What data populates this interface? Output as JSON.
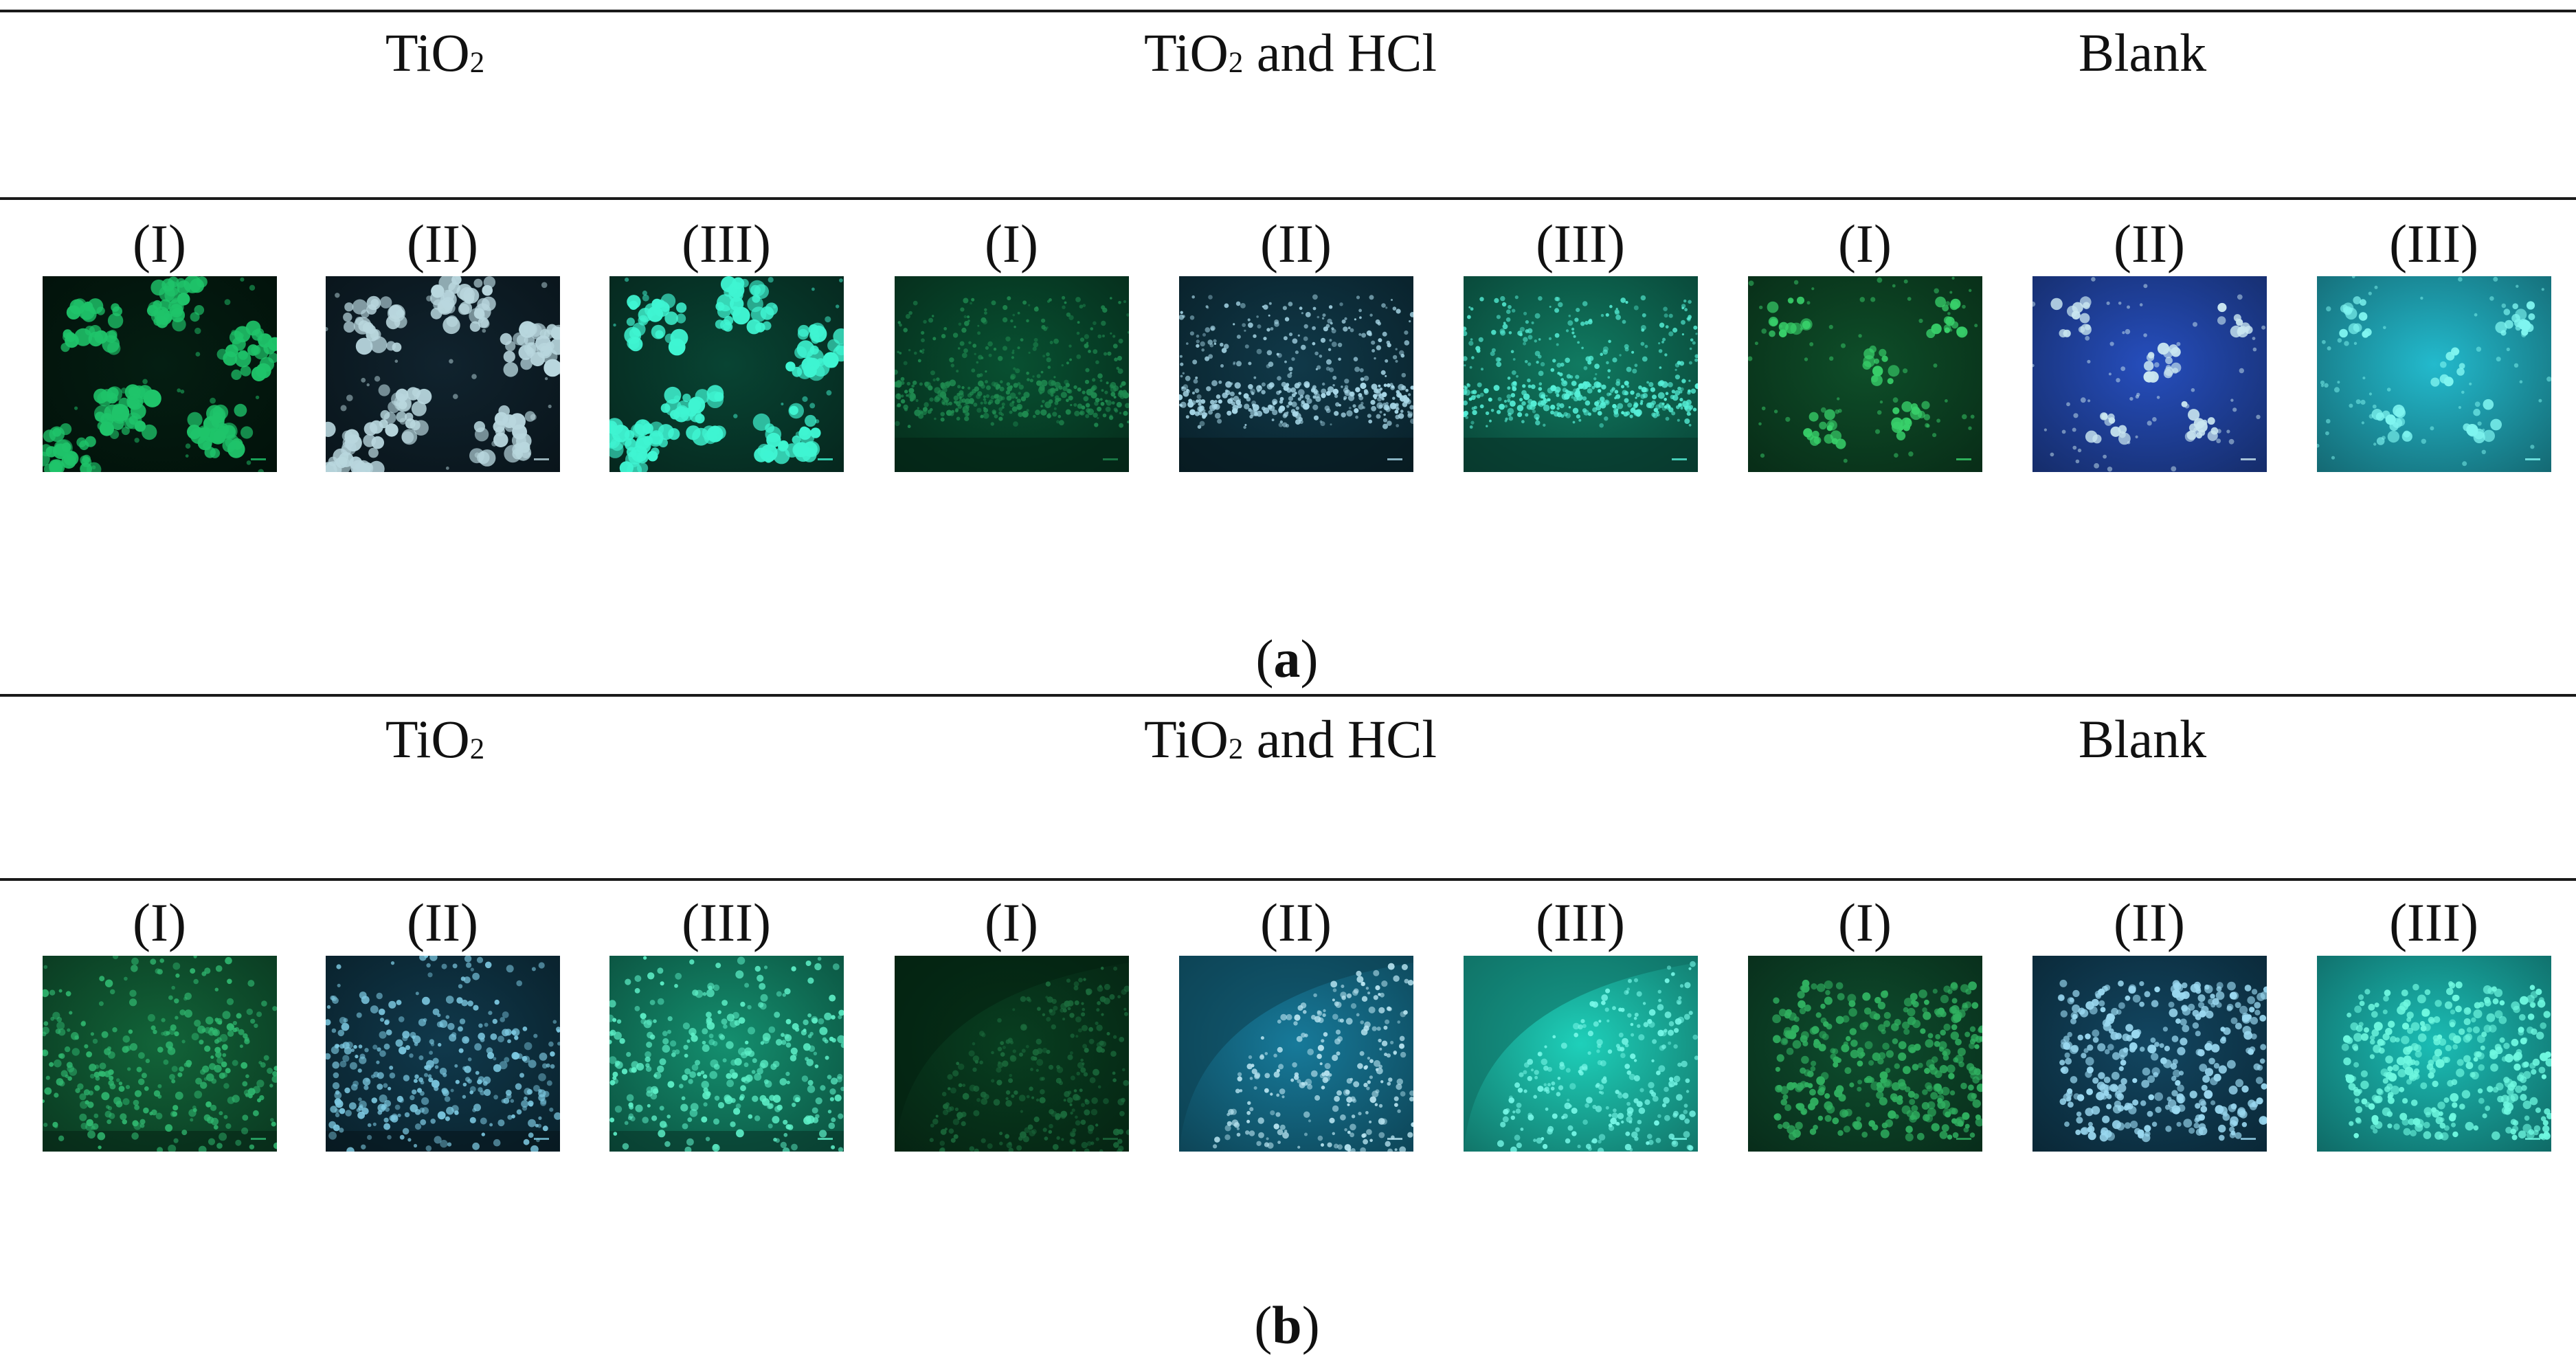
{
  "panels": [
    {
      "id": "a",
      "caption_open": "(",
      "caption_letter": "a",
      "caption_close": ")",
      "groups": [
        {
          "title_main": "TiO",
          "title_sub": "2",
          "title_rest": ""
        },
        {
          "title_main": "TiO",
          "title_sub": "2",
          "title_rest": " and HCl"
        },
        {
          "title_main": "Blank",
          "title_sub": "",
          "title_rest": ""
        }
      ],
      "labels": [
        "(I)",
        "(II)",
        "(III)",
        "(I)",
        "(II)",
        "(III)",
        "(I)",
        "(II)",
        "(III)"
      ],
      "images": [
        {
          "group": "TiO2",
          "channel": "I",
          "bg": "#03160d",
          "dot": "#1fc46a",
          "style": "clusters"
        },
        {
          "group": "TiO2",
          "channel": "II",
          "bg": "#0c1a22",
          "dot": "#b9d7de",
          "style": "clusters"
        },
        {
          "group": "TiO2",
          "channel": "III",
          "bg": "#063226",
          "dot": "#3ff5d2",
          "style": "clusters"
        },
        {
          "group": "TiO2 and HCl",
          "channel": "I",
          "bg": "#063b24",
          "dot": "#1f8a50",
          "style": "band"
        },
        {
          "group": "TiO2 and HCl",
          "channel": "II",
          "bg": "#0c2a36",
          "dot": "#a8d8e8",
          "style": "band"
        },
        {
          "group": "TiO2 and HCl",
          "channel": "III",
          "bg": "#0c5a48",
          "dot": "#56f0d8",
          "style": "band"
        },
        {
          "group": "Blank",
          "channel": "I",
          "bg": "#0a3a1e",
          "dot": "#38d06a",
          "style": "sparse"
        },
        {
          "group": "Blank",
          "channel": "II",
          "bg": "#1c3a8c",
          "dot": "#c9e6f0",
          "style": "sparse"
        },
        {
          "group": "Blank",
          "channel": "III",
          "bg": "#1a8a98",
          "dot": "#7ff5f0",
          "style": "sparse"
        }
      ]
    },
    {
      "id": "b",
      "caption_open": "(",
      "caption_letter": "b",
      "caption_close": ")",
      "groups": [
        {
          "title_main": "TiO",
          "title_sub": "2",
          "title_rest": ""
        },
        {
          "title_main": "TiO",
          "title_sub": "2",
          "title_rest": " and HCl"
        },
        {
          "title_main": "Blank",
          "title_sub": "",
          "title_rest": ""
        }
      ],
      "labels": [
        "(I)",
        "(II)",
        "(III)",
        "(I)",
        "(II)",
        "(III)",
        "(I)",
        "(II)",
        "(III)"
      ],
      "images": [
        {
          "group": "TiO2",
          "channel": "I",
          "bg": "#0d4a2a",
          "dot": "#30b870",
          "style": "dense"
        },
        {
          "group": "TiO2",
          "channel": "II",
          "bg": "#0c2a38",
          "dot": "#7cc8e0",
          "style": "dense"
        },
        {
          "group": "TiO2",
          "channel": "III",
          "bg": "#0f6a52",
          "dot": "#5ef0c8",
          "style": "dense"
        },
        {
          "group": "TiO2 and HCl",
          "channel": "I",
          "bg": "#062e18",
          "dot": "#1b6a3c",
          "style": "arc"
        },
        {
          "group": "TiO2 and HCl",
          "channel": "II",
          "bg": "#115a72",
          "dot": "#b8e4f0",
          "style": "arc"
        },
        {
          "group": "TiO2 and HCl",
          "channel": "III",
          "bg": "#169a8a",
          "dot": "#78f8e8",
          "style": "arc"
        },
        {
          "group": "Blank",
          "channel": "I",
          "bg": "#0a3a22",
          "dot": "#30b060",
          "style": "mesh"
        },
        {
          "group": "Blank",
          "channel": "II",
          "bg": "#0d3448",
          "dot": "#9ad8f0",
          "style": "mesh"
        },
        {
          "group": "Blank",
          "channel": "III",
          "bg": "#148c86",
          "dot": "#6ff8e0",
          "style": "mesh"
        }
      ]
    }
  ]
}
